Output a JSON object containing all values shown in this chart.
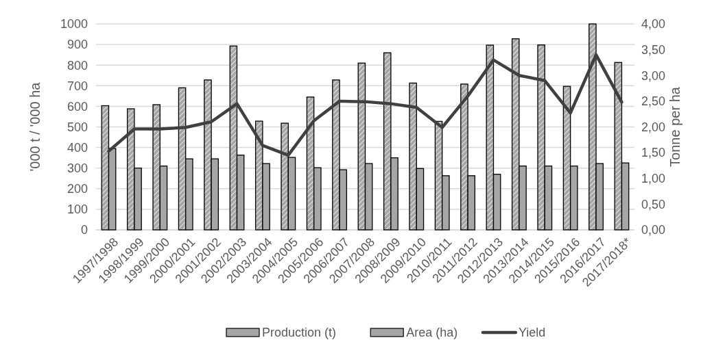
{
  "chart_data": {
    "type": "bar",
    "ylabel": "'000 t / '000 ha",
    "y2label": "Tonne per ha",
    "categories": [
      "1997/1998",
      "1998/1999",
      "1999/2000",
      "2000/2001",
      "2001/2002",
      "2002/2003",
      "2003/2004",
      "2004/2005",
      "2005/2006",
      "2006/2007",
      "2007/2008",
      "2008/2009",
      "2009/2010",
      "2010/2011",
      "2011/2012",
      "2012/2013",
      "2013/2014",
      "2014/2015",
      "2015/2016",
      "2016/2017",
      "2017/2018*"
    ],
    "series": [
      {
        "name": "Production (t)",
        "color": "#a6a6a6",
        "values": [
          603,
          588,
          608,
          690,
          728,
          893,
          528,
          518,
          645,
          728,
          810,
          860,
          713,
          527,
          708,
          897,
          928,
          898,
          697,
          1000,
          813
        ]
      },
      {
        "name": "Area (ha)",
        "color": "#a6a6a6",
        "values": [
          395,
          300,
          310,
          345,
          345,
          363,
          322,
          352,
          302,
          292,
          322,
          350,
          298,
          263,
          263,
          270,
          310,
          310,
          310,
          322,
          325
        ]
      },
      {
        "name": "Yield",
        "type": "line",
        "axis": "y2",
        "color": "#404040",
        "values": [
          1.53,
          1.96,
          1.96,
          1.99,
          2.1,
          2.45,
          1.64,
          1.45,
          2.12,
          2.5,
          2.49,
          2.45,
          2.38,
          1.99,
          2.6,
          3.3,
          3.0,
          2.9,
          2.27,
          3.4,
          2.48
        ]
      }
    ],
    "ylim": [
      0,
      1000
    ],
    "yticks": [
      0,
      100,
      200,
      300,
      400,
      500,
      600,
      700,
      800,
      900,
      1000
    ],
    "y2lim": [
      0,
      4
    ],
    "y2ticks": [
      {
        "value": 0,
        "label": "0,00"
      },
      {
        "value": 0.5,
        "label": "0,50"
      },
      {
        "value": 1,
        "label": "1,00"
      },
      {
        "value": 1.5,
        "label": "1,50"
      },
      {
        "value": 2,
        "label": "2,00"
      },
      {
        "value": 2.5,
        "label": "2,50"
      },
      {
        "value": 3,
        "label": "3,00"
      },
      {
        "value": 3.5,
        "label": "3,50"
      },
      {
        "value": 4,
        "label": "4,00"
      }
    ],
    "grid": "y",
    "legend": "bottom",
    "marker": "none",
    "line_style": "solid"
  }
}
